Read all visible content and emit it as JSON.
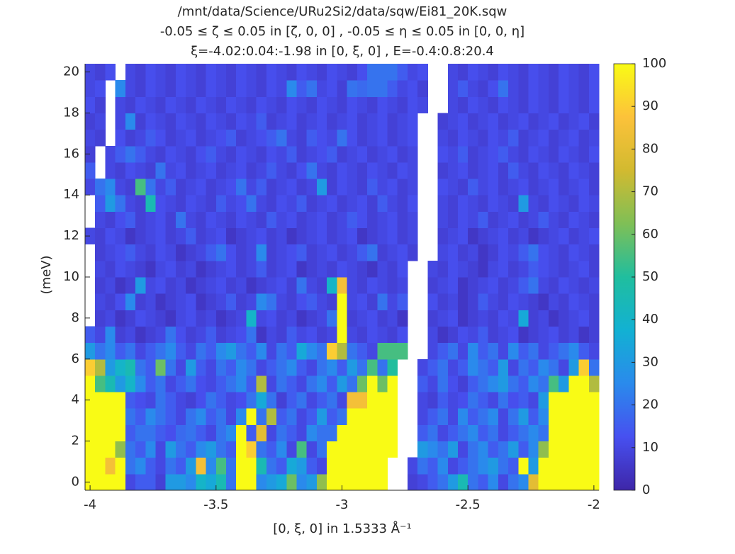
{
  "chart_data": {
    "type": "heatmap",
    "title": [
      "/mnt/data/Science/URu2Si2/data/sqw/Ei81_20K.sqw",
      "-0.05 ≤ ζ ≤ 0.05 in [ζ, 0, 0] , -0.05 ≤ η ≤ 0.05 in [0, 0, η]",
      "ξ=-4.02:0.04:-1.98 in [0, ξ, 0] , E=-0.4:0.8:20.4"
    ],
    "xlabel": "[0, ξ, 0] in 1.5333 Å⁻¹",
    "ylabel": "(meV)",
    "xlim": [
      -4.02,
      -1.98
    ],
    "ylim": [
      -0.4,
      20.4
    ],
    "xticks": [
      -4,
      -3.5,
      -3,
      -2.5,
      -2
    ],
    "yticks": [
      0,
      2,
      4,
      6,
      8,
      10,
      12,
      14,
      16,
      18,
      20
    ],
    "clim": [
      0,
      100
    ],
    "cticks": [
      0,
      10,
      20,
      30,
      40,
      50,
      60,
      70,
      80,
      90,
      100
    ],
    "colormap": [
      [
        0,
        "#3e26a8"
      ],
      [
        0.125,
        "#4750f0"
      ],
      [
        0.25,
        "#2a8aec"
      ],
      [
        0.375,
        "#12b1d3"
      ],
      [
        0.5,
        "#20be9e"
      ],
      [
        0.625,
        "#7fbf56"
      ],
      [
        0.75,
        "#d2ba30"
      ],
      [
        0.875,
        "#fcc23a"
      ],
      [
        1,
        "#f9fb15"
      ]
    ],
    "x": [
      -4,
      -3.96,
      -3.92,
      -3.88,
      -3.84,
      -3.8,
      -3.76,
      -3.72,
      -3.68,
      -3.64,
      -3.6,
      -3.56,
      -3.52,
      -3.48,
      -3.44,
      -3.4,
      -3.36,
      -3.32,
      -3.28,
      -3.24,
      -3.2,
      -3.16,
      -3.12,
      -3.08,
      -3.04,
      -3,
      -2.96,
      -2.92,
      -2.88,
      -2.84,
      -2.8,
      -2.76,
      -2.72,
      -2.68,
      -2.64,
      -2.6,
      -2.56,
      -2.52,
      -2.48,
      -2.44,
      -2.4,
      -2.36,
      -2.32,
      -2.28,
      -2.24,
      -2.2,
      -2.16,
      -2.12,
      -2.08,
      -2.04,
      -2
    ],
    "y": [
      0,
      0.8,
      1.6,
      2.4,
      3.2,
      4,
      4.8,
      5.6,
      6.4,
      7.2,
      8,
      8.8,
      9.6,
      10.4,
      11.2,
      12,
      12.8,
      13.6,
      14.4,
      15.2,
      16,
      16.8,
      17.6,
      18.4,
      19.2,
      20
    ],
    "z": [
      [
        110,
        110,
        110,
        110,
        10,
        15,
        15,
        8,
        30,
        30,
        25,
        40,
        35,
        45,
        20,
        110,
        110,
        25,
        30,
        35,
        60,
        25,
        30,
        65,
        110,
        110,
        110,
        110,
        110,
        110,
        null,
        null,
        8,
        10,
        15,
        20,
        30,
        45,
        20,
        15,
        25,
        10,
        20,
        25,
        80,
        100,
        110,
        110,
        110,
        110,
        110
      ],
      [
        110,
        110,
        85,
        110,
        20,
        25,
        15,
        10,
        20,
        15,
        30,
        85,
        25,
        55,
        20,
        110,
        110,
        45,
        20,
        15,
        35,
        30,
        15,
        10,
        100,
        110,
        110,
        110,
        110,
        110,
        null,
        null,
        10,
        20,
        15,
        25,
        10,
        15,
        20,
        25,
        30,
        20,
        15,
        100,
        30,
        110,
        110,
        110,
        110,
        110,
        110
      ],
      [
        110,
        110,
        110,
        65,
        20,
        15,
        25,
        10,
        30,
        20,
        15,
        25,
        30,
        20,
        15,
        110,
        90,
        20,
        15,
        25,
        10,
        55,
        10,
        20,
        110,
        110,
        110,
        110,
        110,
        110,
        110,
        null,
        null,
        30,
        25,
        20,
        30,
        10,
        20,
        25,
        15,
        20,
        30,
        15,
        25,
        65,
        100,
        110,
        110,
        110,
        110
      ],
      [
        110,
        110,
        110,
        110,
        15,
        20,
        20,
        15,
        12,
        18,
        20,
        15,
        10,
        20,
        25,
        110,
        15,
        80,
        10,
        20,
        15,
        10,
        25,
        20,
        20,
        110,
        110,
        110,
        110,
        110,
        110,
        null,
        null,
        15,
        20,
        10,
        15,
        20,
        25,
        15,
        20,
        10,
        15,
        20,
        25,
        20,
        110,
        110,
        110,
        110,
        110
      ],
      [
        110,
        110,
        110,
        110,
        20,
        15,
        25,
        20,
        15,
        10,
        20,
        25,
        15,
        20,
        10,
        25,
        110,
        20,
        70,
        15,
        20,
        10,
        15,
        30,
        15,
        20,
        110,
        110,
        110,
        110,
        110,
        null,
        null,
        10,
        15,
        20,
        10,
        25,
        15,
        20,
        25,
        10,
        20,
        30,
        15,
        25,
        110,
        110,
        110,
        110,
        110
      ],
      [
        110,
        110,
        110,
        110,
        15,
        12,
        10,
        20,
        15,
        10,
        8,
        12,
        20,
        15,
        10,
        12,
        20,
        35,
        20,
        8,
        15,
        20,
        10,
        15,
        20,
        10,
        85,
        85,
        110,
        110,
        110,
        null,
        null,
        10,
        8,
        15,
        10,
        12,
        20,
        15,
        10,
        20,
        12,
        15,
        10,
        30,
        100,
        110,
        110,
        110,
        110
      ],
      [
        110,
        55,
        45,
        30,
        40,
        25,
        15,
        20,
        10,
        15,
        20,
        12,
        10,
        15,
        20,
        25,
        15,
        70,
        10,
        20,
        15,
        10,
        20,
        25,
        15,
        30,
        20,
        60,
        110,
        60,
        110,
        null,
        null,
        15,
        10,
        20,
        12,
        8,
        15,
        20,
        25,
        30,
        20,
        15,
        25,
        20,
        55,
        30,
        110,
        110,
        70
      ],
      [
        90,
        70,
        30,
        40,
        45,
        20,
        15,
        60,
        20,
        10,
        30,
        15,
        10,
        20,
        15,
        25,
        20,
        10,
        15,
        20,
        25,
        15,
        10,
        20,
        25,
        15,
        30,
        20,
        55,
        20,
        50,
        null,
        null,
        10,
        15,
        20,
        10,
        15,
        25,
        20,
        15,
        30,
        10,
        20,
        15,
        25,
        20,
        10,
        30,
        90,
        20
      ],
      [
        30,
        20,
        25,
        15,
        20,
        10,
        15,
        20,
        25,
        15,
        10,
        20,
        15,
        25,
        30,
        20,
        15,
        25,
        10,
        20,
        15,
        35,
        25,
        20,
        90,
        70,
        20,
        15,
        10,
        55,
        55,
        55,
        null,
        null,
        10,
        15,
        20,
        10,
        25,
        15,
        20,
        10,
        25,
        15,
        20,
        10,
        15,
        20,
        25,
        15,
        10
      ],
      [
        15,
        10,
        25,
        8,
        10,
        5,
        8,
        10,
        20,
        12,
        8,
        10,
        15,
        8,
        10,
        12,
        20,
        5,
        10,
        8,
        15,
        10,
        12,
        8,
        10,
        100,
        10,
        8,
        12,
        10,
        8,
        12,
        null,
        null,
        10,
        5,
        8,
        12,
        10,
        15,
        8,
        10,
        12,
        5,
        8,
        10,
        12,
        8,
        10,
        5,
        8
      ],
      [
        null,
        8,
        10,
        5,
        8,
        12,
        10,
        8,
        5,
        10,
        12,
        8,
        10,
        5,
        8,
        10,
        40,
        10,
        12,
        8,
        10,
        5,
        8,
        10,
        20,
        100,
        8,
        10,
        12,
        8,
        10,
        5,
        null,
        null,
        8,
        10,
        12,
        5,
        8,
        10,
        8,
        12,
        10,
        35,
        8,
        10,
        5,
        8,
        10,
        12,
        8
      ],
      [
        null,
        10,
        8,
        12,
        25,
        8,
        10,
        5,
        8,
        10,
        12,
        5,
        8,
        10,
        15,
        8,
        10,
        25,
        20,
        10,
        8,
        12,
        15,
        10,
        8,
        100,
        10,
        12,
        8,
        20,
        10,
        15,
        null,
        null,
        12,
        8,
        10,
        5,
        8,
        15,
        10,
        8,
        12,
        10,
        8,
        5,
        10,
        8,
        12,
        10,
        8
      ],
      [
        null,
        8,
        10,
        5,
        8,
        30,
        10,
        12,
        8,
        10,
        5,
        8,
        10,
        12,
        8,
        10,
        5,
        8,
        10,
        12,
        8,
        20,
        10,
        8,
        40,
        85,
        10,
        8,
        12,
        10,
        8,
        10,
        null,
        null,
        8,
        10,
        12,
        5,
        8,
        10,
        12,
        8,
        10,
        15,
        20,
        10,
        8,
        12,
        10,
        8,
        10
      ],
      [
        null,
        10,
        8,
        12,
        10,
        8,
        5,
        10,
        12,
        8,
        10,
        5,
        8,
        10,
        12,
        8,
        10,
        15,
        8,
        10,
        12,
        5,
        8,
        10,
        8,
        12,
        10,
        8,
        5,
        10,
        8,
        12,
        null,
        null,
        10,
        8,
        12,
        10,
        8,
        5,
        10,
        12,
        8,
        10,
        15,
        12,
        10,
        8,
        10,
        12,
        8
      ],
      [
        null,
        8,
        10,
        12,
        15,
        10,
        8,
        12,
        10,
        5,
        8,
        10,
        15,
        20,
        12,
        8,
        10,
        25,
        8,
        10,
        12,
        15,
        8,
        10,
        12,
        8,
        10,
        15,
        20,
        8,
        10,
        12,
        8,
        null,
        null,
        10,
        12,
        8,
        10,
        5,
        8,
        12,
        10,
        15,
        20,
        12,
        10,
        8,
        12,
        10,
        8
      ],
      [
        10,
        8,
        12,
        10,
        5,
        8,
        10,
        12,
        8,
        10,
        15,
        8,
        10,
        12,
        5,
        8,
        10,
        12,
        8,
        10,
        5,
        8,
        10,
        12,
        8,
        10,
        12,
        5,
        8,
        10,
        12,
        8,
        10,
        null,
        null,
        8,
        10,
        12,
        5,
        8,
        10,
        12,
        8,
        10,
        5,
        8,
        10,
        12,
        8,
        10,
        12
      ],
      [
        null,
        10,
        8,
        12,
        15,
        8,
        10,
        12,
        8,
        20,
        10,
        8,
        12,
        10,
        8,
        12,
        10,
        8,
        15,
        10,
        12,
        8,
        10,
        12,
        8,
        10,
        15,
        12,
        8,
        10,
        12,
        8,
        10,
        null,
        null,
        10,
        8,
        12,
        10,
        15,
        8,
        10,
        12,
        8,
        10,
        15,
        10,
        8,
        12,
        10,
        8
      ],
      [
        null,
        15,
        30,
        20,
        10,
        8,
        45,
        12,
        10,
        8,
        12,
        10,
        8,
        15,
        10,
        12,
        20,
        10,
        8,
        12,
        10,
        15,
        8,
        10,
        12,
        8,
        10,
        12,
        8,
        15,
        10,
        8,
        12,
        null,
        null,
        10,
        8,
        12,
        10,
        8,
        12,
        10,
        8,
        30,
        10,
        8,
        12,
        10,
        8,
        12,
        10
      ],
      [
        10,
        20,
        25,
        10,
        8,
        55,
        20,
        10,
        15,
        8,
        10,
        12,
        8,
        10,
        12,
        20,
        10,
        15,
        8,
        10,
        12,
        8,
        10,
        30,
        8,
        12,
        10,
        8,
        15,
        10,
        12,
        8,
        10,
        null,
        null,
        12,
        10,
        8,
        15,
        10,
        12,
        8,
        10,
        12,
        8,
        10,
        12,
        8,
        10,
        12,
        8
      ],
      [
        15,
        null,
        10,
        8,
        12,
        10,
        8,
        20,
        10,
        12,
        8,
        10,
        12,
        8,
        10,
        12,
        8,
        10,
        15,
        10,
        8,
        12,
        20,
        10,
        8,
        12,
        10,
        8,
        12,
        10,
        8,
        12,
        10,
        null,
        null,
        8,
        10,
        12,
        8,
        10,
        12,
        8,
        15,
        10,
        8,
        12,
        10,
        8,
        12,
        10,
        8
      ],
      [
        8,
        null,
        10,
        15,
        20,
        15,
        10,
        8,
        12,
        10,
        8,
        12,
        15,
        10,
        8,
        12,
        10,
        8,
        12,
        10,
        15,
        8,
        10,
        12,
        15,
        8,
        10,
        12,
        8,
        10,
        12,
        8,
        10,
        null,
        null,
        12,
        10,
        15,
        8,
        10,
        12,
        15,
        10,
        8,
        12,
        10,
        8,
        12,
        10,
        8,
        12
      ],
      [
        10,
        8,
        null,
        12,
        8,
        10,
        15,
        12,
        8,
        10,
        12,
        8,
        10,
        12,
        15,
        8,
        10,
        12,
        15,
        20,
        10,
        8,
        15,
        12,
        10,
        20,
        12,
        8,
        10,
        12,
        8,
        10,
        12,
        null,
        null,
        10,
        8,
        12,
        10,
        8,
        12,
        10,
        15,
        8,
        10,
        12,
        8,
        10,
        12,
        8,
        10
      ],
      [
        8,
        10,
        null,
        10,
        25,
        8,
        12,
        10,
        8,
        12,
        10,
        8,
        12,
        10,
        8,
        12,
        10,
        15,
        8,
        10,
        12,
        8,
        10,
        12,
        8,
        10,
        12,
        8,
        10,
        12,
        8,
        10,
        12,
        null,
        null,
        8,
        10,
        12,
        8,
        10,
        12,
        8,
        10,
        12,
        8,
        10,
        12,
        8,
        10,
        12,
        8
      ],
      [
        12,
        8,
        null,
        10,
        8,
        12,
        10,
        8,
        12,
        10,
        8,
        12,
        10,
        8,
        12,
        10,
        8,
        12,
        10,
        8,
        12,
        10,
        8,
        12,
        10,
        8,
        12,
        10,
        8,
        12,
        10,
        8,
        12,
        10,
        null,
        null,
        10,
        8,
        12,
        10,
        8,
        12,
        10,
        8,
        12,
        10,
        8,
        12,
        10,
        8,
        12
      ],
      [
        10,
        12,
        null,
        25,
        10,
        8,
        12,
        10,
        8,
        12,
        10,
        8,
        12,
        10,
        8,
        12,
        10,
        8,
        12,
        10,
        25,
        15,
        20,
        10,
        12,
        8,
        20,
        18,
        20,
        20,
        15,
        10,
        12,
        8,
        null,
        null,
        10,
        15,
        10,
        8,
        12,
        20,
        10,
        8,
        12,
        10,
        8,
        12,
        10,
        8,
        12
      ],
      [
        10,
        8,
        12,
        null,
        10,
        8,
        12,
        10,
        8,
        12,
        10,
        8,
        12,
        10,
        8,
        12,
        10,
        8,
        12,
        10,
        8,
        12,
        10,
        8,
        12,
        10,
        8,
        12,
        20,
        20,
        20,
        15,
        10,
        12,
        null,
        null,
        10,
        8,
        12,
        10,
        8,
        12,
        10,
        8,
        12,
        10,
        8,
        12,
        10,
        8,
        12
      ]
    ]
  }
}
